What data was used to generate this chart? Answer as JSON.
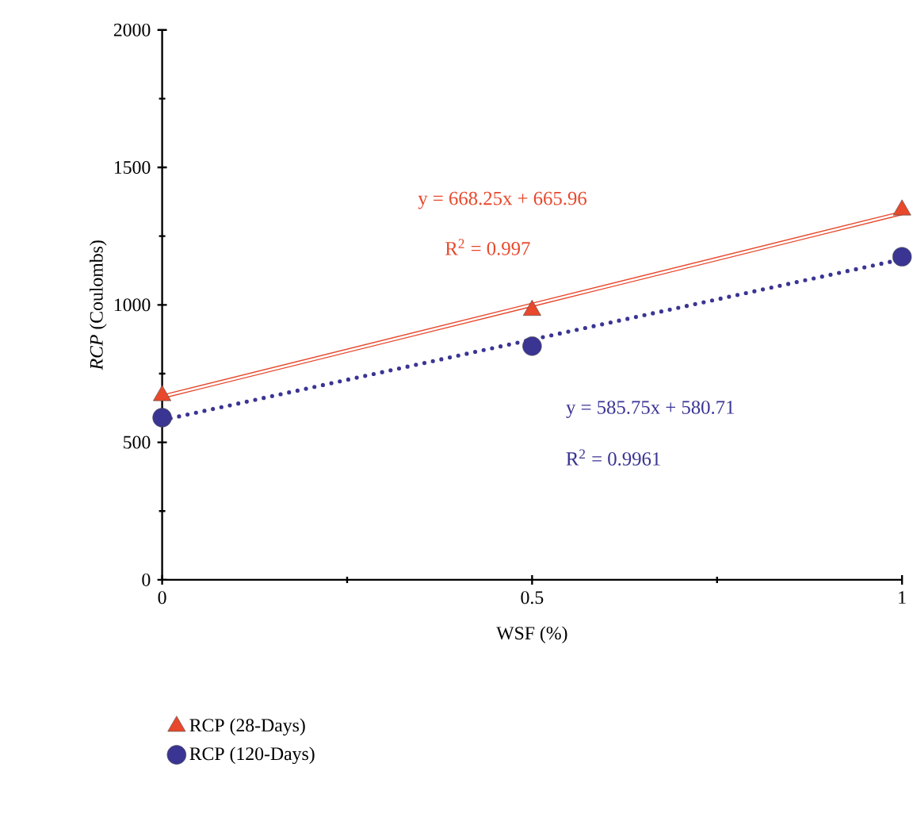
{
  "chart_data": {
    "type": "scatter",
    "xlabel": "WSF (%)",
    "ylabel": "*RCP* (Coulombs)",
    "x": [
      0,
      0.5,
      1
    ],
    "series": [
      {
        "name": "RCP (28-Days)",
        "marker": "triangle",
        "color": "#e8482c",
        "values": [
          670,
          980,
          1345
        ]
      },
      {
        "name": "RCP (120-Days)",
        "marker": "circle",
        "color": "#3a3593",
        "values": [
          590,
          850,
          1175
        ]
      },
      {
        "type": "line",
        "line_style": "solid",
        "color": "#e8482c",
        "values": [
          666,
          1000,
          1334
        ]
      },
      {
        "type": "line",
        "line_style": "dotted",
        "color": "#3a3593",
        "values": [
          581,
          874,
          1166
        ]
      }
    ],
    "annotations": [
      "y = 668.25x + 665.96",
      "R$^{2}$ = 0.997",
      "y = 585.75x + 580.71",
      "R$^{2}$ = 0.9961"
    ],
    "xlim": [
      0,
      1
    ],
    "xticks": [
      0,
      0.5,
      1
    ],
    "ylim": [
      0,
      2000
    ],
    "yticks": [
      0,
      500,
      1000,
      1500,
      2000
    ],
    "grid": false,
    "legend": "bottom left"
  }
}
